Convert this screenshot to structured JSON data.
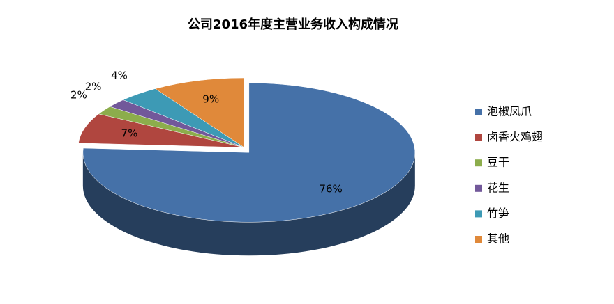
{
  "chart_data": {
    "type": "pie",
    "title": "公司2016年度主营业务收入构成情况",
    "categories": [
      "泡椒凤爪",
      "卤香火鸡翅",
      "豆干",
      "花生",
      "竹笋",
      "其他"
    ],
    "values": [
      76,
      7,
      2,
      2,
      4,
      9
    ],
    "value_labels": [
      "76%",
      "7%",
      "2%",
      "2%",
      "4%",
      "9%"
    ],
    "colors": [
      "#4571a8",
      "#b0463f",
      "#8cad4c",
      "#72589a",
      "#3d9ab5",
      "#e0893a"
    ],
    "legend": "right"
  }
}
